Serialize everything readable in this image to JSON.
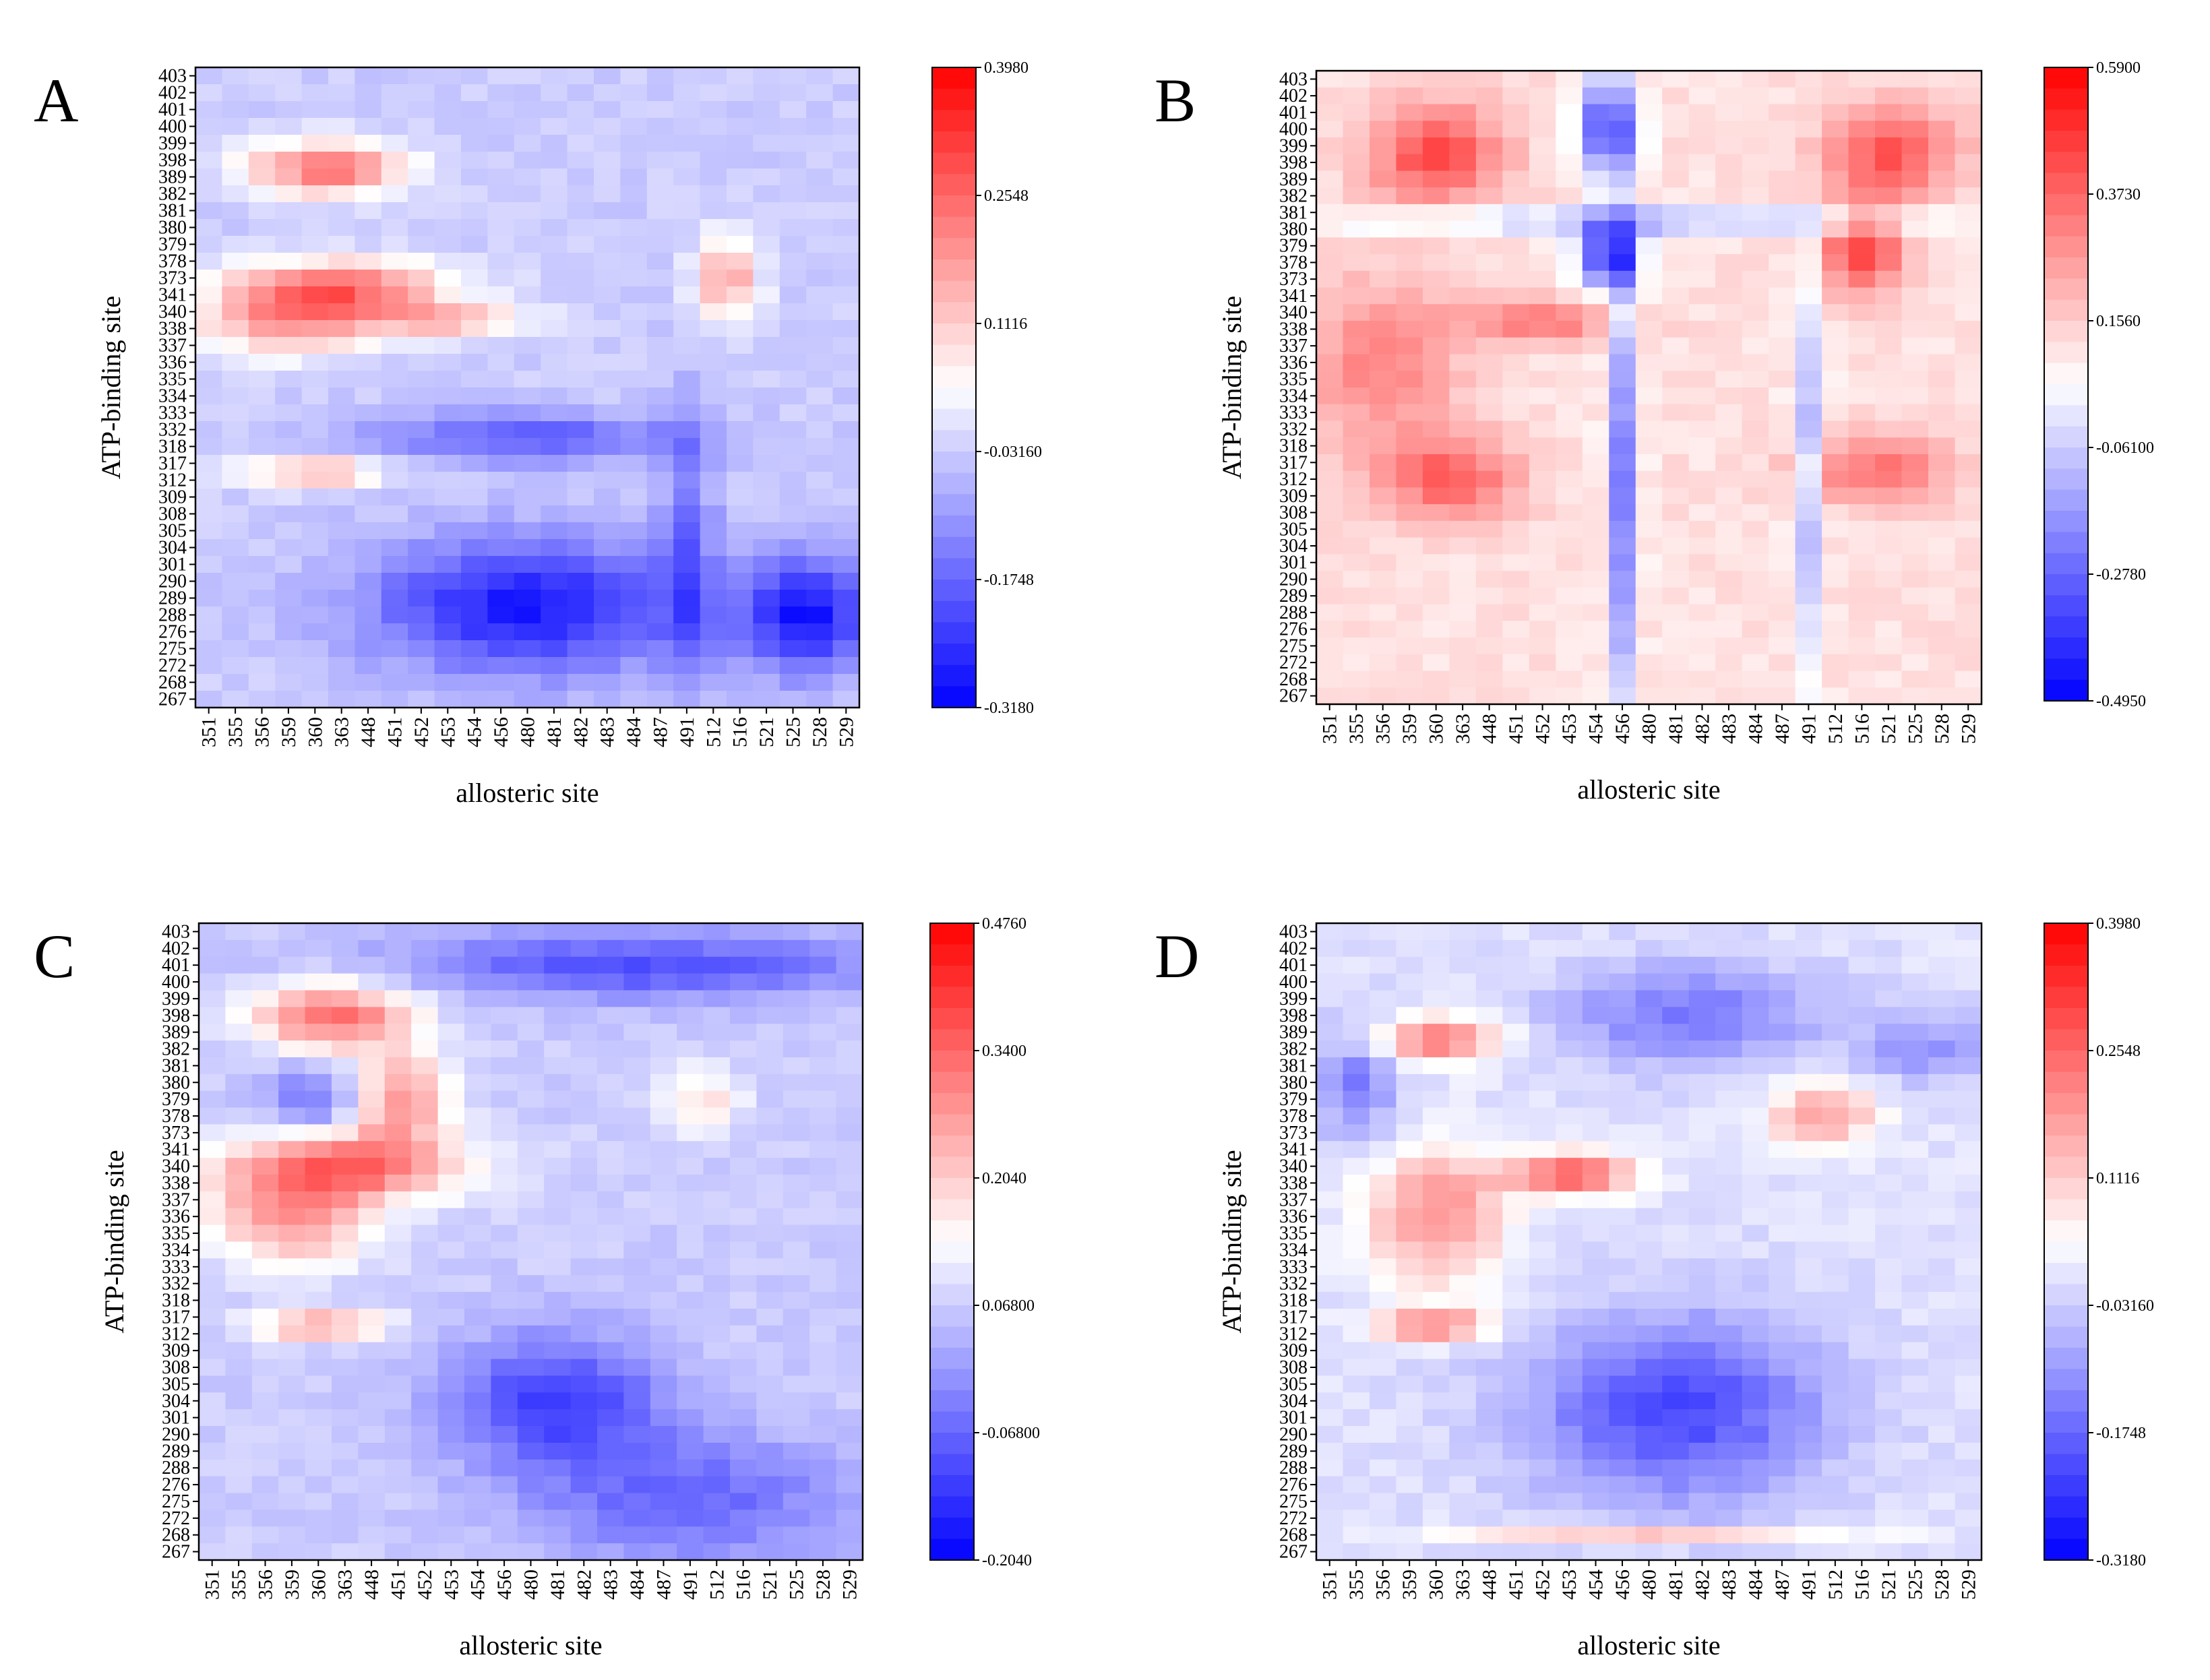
{
  "chart_data": [
    {
      "type": "heatmap",
      "panel_label": "A",
      "xlabel": "allosteric site",
      "ylabel": "ATP-binding site",
      "x_categories": [
        "351",
        "355",
        "356",
        "359",
        "360",
        "363",
        "448",
        "451",
        "452",
        "453",
        "454",
        "456",
        "480",
        "481",
        "482",
        "483",
        "484",
        "487",
        "491",
        "512",
        "516",
        "521",
        "525",
        "528",
        "529"
      ],
      "y_categories": [
        "403",
        "402",
        "401",
        "400",
        "399",
        "398",
        "389",
        "382",
        "381",
        "380",
        "379",
        "378",
        "373",
        "341",
        "340",
        "338",
        "337",
        "336",
        "335",
        "334",
        "333",
        "332",
        "318",
        "317",
        "312",
        "309",
        "308",
        "305",
        "304",
        "301",
        "290",
        "289",
        "288",
        "276",
        "275",
        "272",
        "268",
        "267"
      ],
      "colorbar_ticks": [
        "0.3980",
        "0.2548",
        "0.1116",
        "-0.03160",
        "-0.1748",
        "-0.3180"
      ],
      "vmin": -0.318,
      "vmax": 0.398,
      "approx_pattern": "strong positive correlation between residues 389-398/373-341 and allosteric 359-454; strong negative block for ATP 267-301 vs allosteric 451-491 and 525-529"
    },
    {
      "type": "heatmap",
      "panel_label": "B",
      "xlabel": "allosteric site",
      "ylabel": "ATP-binding site",
      "x_categories": [
        "351",
        "355",
        "356",
        "359",
        "360",
        "363",
        "448",
        "451",
        "452",
        "453",
        "454",
        "456",
        "480",
        "481",
        "482",
        "483",
        "484",
        "487",
        "491",
        "512",
        "516",
        "521",
        "525",
        "528",
        "529"
      ],
      "y_categories": [
        "403",
        "402",
        "401",
        "400",
        "399",
        "398",
        "389",
        "382",
        "381",
        "380",
        "379",
        "378",
        "373",
        "341",
        "340",
        "338",
        "337",
        "336",
        "335",
        "334",
        "333",
        "332",
        "318",
        "317",
        "312",
        "309",
        "308",
        "305",
        "304",
        "301",
        "290",
        "289",
        "288",
        "276",
        "275",
        "272",
        "268",
        "267"
      ],
      "colorbar_ticks": [
        "0.5900",
        "0.3730",
        "0.1560",
        "-0.06100",
        "-0.2780",
        "-0.4950"
      ],
      "vmin": -0.495,
      "vmax": 0.59,
      "approx_pattern": "mostly positive; negative columns at 453-456 and 491; negative rows around 381"
    },
    {
      "type": "heatmap",
      "panel_label": "C",
      "xlabel": "allosteric site",
      "ylabel": "ATP-binding site",
      "x_categories": [
        "351",
        "355",
        "356",
        "359",
        "360",
        "363",
        "448",
        "451",
        "452",
        "453",
        "454",
        "456",
        "480",
        "481",
        "482",
        "483",
        "484",
        "487",
        "491",
        "512",
        "516",
        "521",
        "525",
        "528",
        "529"
      ],
      "y_categories": [
        "403",
        "402",
        "401",
        "400",
        "399",
        "398",
        "389",
        "382",
        "381",
        "380",
        "379",
        "378",
        "373",
        "341",
        "340",
        "338",
        "337",
        "336",
        "335",
        "334",
        "333",
        "332",
        "318",
        "317",
        "312",
        "309",
        "308",
        "305",
        "304",
        "301",
        "290",
        "289",
        "288",
        "276",
        "275",
        "272",
        "268",
        "267"
      ],
      "colorbar_ticks": [
        "0.4760",
        "0.3400",
        "0.2040",
        "0.06800",
        "-0.06800",
        "-0.2040"
      ],
      "vmin": -0.204,
      "vmax": 0.476,
      "approx_pattern": "positive block ATP 317-400 vs allosteric 351-454; negative region lower right"
    },
    {
      "type": "heatmap",
      "panel_label": "D",
      "xlabel": "allosteric site",
      "ylabel": "ATP-binding site",
      "x_categories": [
        "351",
        "355",
        "356",
        "359",
        "360",
        "363",
        "448",
        "451",
        "452",
        "453",
        "454",
        "456",
        "480",
        "481",
        "482",
        "483",
        "484",
        "487",
        "491",
        "512",
        "516",
        "521",
        "525",
        "528",
        "529"
      ],
      "y_categories": [
        "403",
        "402",
        "401",
        "400",
        "399",
        "398",
        "389",
        "382",
        "381",
        "380",
        "379",
        "378",
        "373",
        "341",
        "340",
        "338",
        "337",
        "336",
        "335",
        "334",
        "333",
        "332",
        "318",
        "317",
        "312",
        "309",
        "308",
        "305",
        "304",
        "301",
        "290",
        "289",
        "288",
        "276",
        "275",
        "272",
        "268",
        "267"
      ],
      "colorbar_ticks": [
        "0.3980",
        "0.2548",
        "0.1116",
        "-0.03160",
        "-0.1748",
        "-0.3180"
      ],
      "vmin": -0.318,
      "vmax": 0.398,
      "approx_pattern": "positive ATP 317-398 vs allosteric 351-363 and 340-341 vs 451-454; negative block ATP 272-333 vs 448-491; positive row 268 vs 448-484"
    }
  ]
}
